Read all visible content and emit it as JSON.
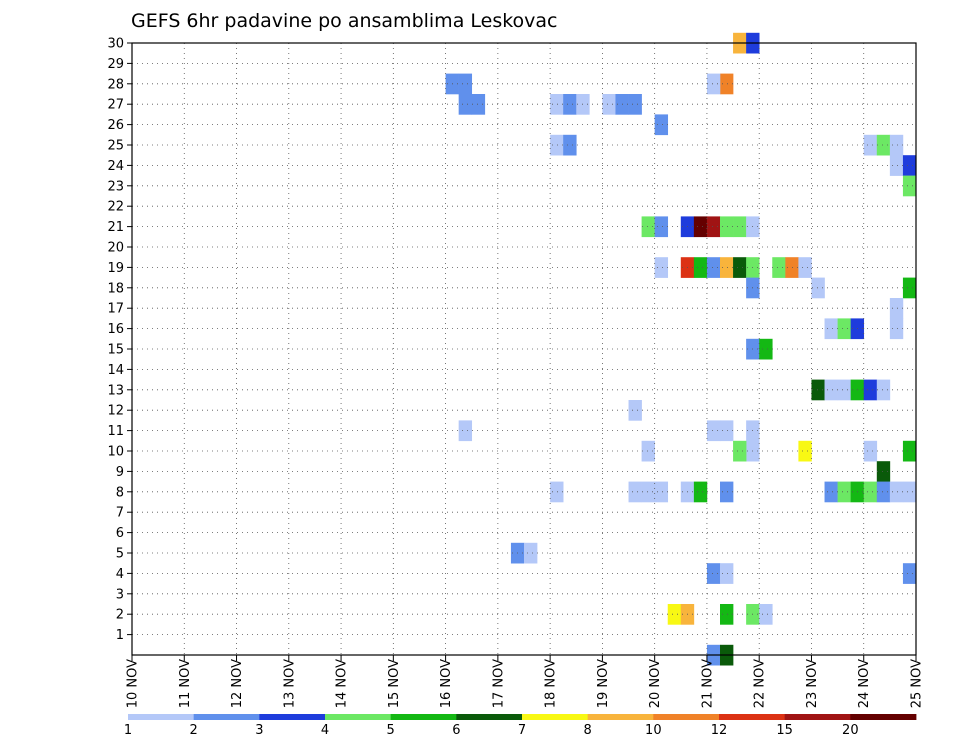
{
  "chart_data": {
    "type": "heatmap",
    "title": "GEFS 6hr padavine po ansamblima Leskovac",
    "xlabel": "",
    "ylabel": "",
    "x_ticks": [
      "10 NOV",
      "11 NOV",
      "12 NOV",
      "13 NOV",
      "14 NOV",
      "15 NOV",
      "16 NOV",
      "17 NOV",
      "18 NOV",
      "19 NOV",
      "20 NOV",
      "21 NOV",
      "22 NOV",
      "23 NOV",
      "24 NOV",
      "25 NOV"
    ],
    "y_ticks": [
      "1",
      "2",
      "3",
      "4",
      "5",
      "6",
      "7",
      "8",
      "9",
      "10",
      "11",
      "12",
      "13",
      "14",
      "15",
      "16",
      "17",
      "18",
      "19",
      "20",
      "21",
      "22",
      "23",
      "24",
      "25",
      "26",
      "27",
      "28",
      "29",
      "30"
    ],
    "xlim": [
      0,
      60
    ],
    "ylim": [
      0,
      30
    ],
    "x_unit": "6-hour steps from 10 NOV 00Z",
    "grid": true,
    "colorbar": {
      "colors": [
        "#b4c8f8",
        "#6090ec",
        "#1e3cdc",
        "#6ce864",
        "#14b814",
        "#0a5a0a",
        "#f8f814",
        "#f8b43c",
        "#f08228",
        "#dc3214",
        "#a01414",
        "#640000"
      ],
      "labels": [
        "1",
        "2",
        "3",
        "4",
        "5",
        "6",
        "7",
        "8",
        "10",
        "12",
        "15",
        "20"
      ]
    },
    "cells": [
      {
        "member": 0,
        "x": 44,
        "level": 1
      },
      {
        "member": 0,
        "x": 45,
        "level": 5
      },
      {
        "member": 30,
        "x": 46,
        "level": 7
      },
      {
        "member": 30,
        "x": 47,
        "level": 2
      },
      {
        "member": 28,
        "x": 25,
        "level": 1
      },
      {
        "member": 28,
        "x": 24,
        "level": 1
      },
      {
        "member": 28,
        "x": 45,
        "level": 8
      },
      {
        "member": 28,
        "x": 44,
        "level": 0
      },
      {
        "member": 27,
        "x": 25,
        "level": 1
      },
      {
        "member": 27,
        "x": 26,
        "level": 1
      },
      {
        "member": 27,
        "x": 32,
        "level": 0
      },
      {
        "member": 27,
        "x": 33,
        "level": 1
      },
      {
        "member": 27,
        "x": 34,
        "level": 0
      },
      {
        "member": 27,
        "x": 36,
        "level": 0
      },
      {
        "member": 27,
        "x": 37,
        "level": 1
      },
      {
        "member": 27,
        "x": 38,
        "level": 1
      },
      {
        "member": 26,
        "x": 40,
        "level": 1
      },
      {
        "member": 25,
        "x": 32,
        "level": 0
      },
      {
        "member": 25,
        "x": 33,
        "level": 1
      },
      {
        "member": 25,
        "x": 56,
        "level": 0
      },
      {
        "member": 25,
        "x": 57,
        "level": 3
      },
      {
        "member": 25,
        "x": 58,
        "level": 0
      },
      {
        "member": 24,
        "x": 58,
        "level": 0
      },
      {
        "member": 24,
        "x": 59,
        "level": 2
      },
      {
        "member": 23,
        "x": 59,
        "level": 3
      },
      {
        "member": 21,
        "x": 39,
        "level": 3
      },
      {
        "member": 21,
        "x": 40,
        "level": 1
      },
      {
        "member": 21,
        "x": 42,
        "level": 2
      },
      {
        "member": 21,
        "x": 43,
        "level": 11
      },
      {
        "member": 21,
        "x": 44,
        "level": 10
      },
      {
        "member": 21,
        "x": 45,
        "level": 3
      },
      {
        "member": 21,
        "x": 46,
        "level": 3
      },
      {
        "member": 21,
        "x": 47,
        "level": 0
      },
      {
        "member": 19,
        "x": 40,
        "level": 0
      },
      {
        "member": 19,
        "x": 42,
        "level": 9
      },
      {
        "member": 19,
        "x": 43,
        "level": 4
      },
      {
        "member": 19,
        "x": 44,
        "level": 1
      },
      {
        "member": 19,
        "x": 45,
        "level": 7
      },
      {
        "member": 19,
        "x": 46,
        "level": 5
      },
      {
        "member": 19,
        "x": 47,
        "level": 3
      },
      {
        "member": 19,
        "x": 49,
        "level": 3
      },
      {
        "member": 19,
        "x": 50,
        "level": 8
      },
      {
        "member": 19,
        "x": 51,
        "level": 0
      },
      {
        "member": 18,
        "x": 47,
        "level": 1
      },
      {
        "member": 18,
        "x": 52,
        "level": 0
      },
      {
        "member": 18,
        "x": 59,
        "level": 4
      },
      {
        "member": 17,
        "x": 58,
        "level": 0
      },
      {
        "member": 16,
        "x": 53,
        "level": 0
      },
      {
        "member": 16,
        "x": 54,
        "level": 3
      },
      {
        "member": 16,
        "x": 55,
        "level": 2
      },
      {
        "member": 16,
        "x": 58,
        "level": 0
      },
      {
        "member": 15,
        "x": 47,
        "level": 1
      },
      {
        "member": 15,
        "x": 48,
        "level": 4
      },
      {
        "member": 13,
        "x": 52,
        "level": 5
      },
      {
        "member": 13,
        "x": 53,
        "level": 0
      },
      {
        "member": 13,
        "x": 54,
        "level": 0
      },
      {
        "member": 13,
        "x": 55,
        "level": 4
      },
      {
        "member": 13,
        "x": 56,
        "level": 2
      },
      {
        "member": 13,
        "x": 57,
        "level": 0
      },
      {
        "member": 12,
        "x": 38,
        "level": 0
      },
      {
        "member": 11,
        "x": 25,
        "level": 0
      },
      {
        "member": 11,
        "x": 44,
        "level": 0
      },
      {
        "member": 11,
        "x": 45,
        "level": 0
      },
      {
        "member": 11,
        "x": 47,
        "level": 0
      },
      {
        "member": 10,
        "x": 39,
        "level": 0
      },
      {
        "member": 10,
        "x": 47,
        "level": 0
      },
      {
        "member": 10,
        "x": 46,
        "level": 3
      },
      {
        "member": 10,
        "x": 51,
        "level": 6
      },
      {
        "member": 10,
        "x": 56,
        "level": 0
      },
      {
        "member": 10,
        "x": 59,
        "level": 4
      },
      {
        "member": 9,
        "x": 57,
        "level": 5
      },
      {
        "member": 8,
        "x": 32,
        "level": 0
      },
      {
        "member": 8,
        "x": 38,
        "level": 0
      },
      {
        "member": 8,
        "x": 39,
        "level": 0
      },
      {
        "member": 8,
        "x": 40,
        "level": 0
      },
      {
        "member": 8,
        "x": 42,
        "level": 0
      },
      {
        "member": 8,
        "x": 43,
        "level": 4
      },
      {
        "member": 8,
        "x": 45,
        "level": 1
      },
      {
        "member": 8,
        "x": 53,
        "level": 1
      },
      {
        "member": 8,
        "x": 54,
        "level": 3
      },
      {
        "member": 8,
        "x": 55,
        "level": 4
      },
      {
        "member": 8,
        "x": 56,
        "level": 3
      },
      {
        "member": 8,
        "x": 57,
        "level": 1
      },
      {
        "member": 8,
        "x": 58,
        "level": 0
      },
      {
        "member": 8,
        "x": 59,
        "level": 0
      },
      {
        "member": 5,
        "x": 29,
        "level": 1
      },
      {
        "member": 5,
        "x": 30,
        "level": 0
      },
      {
        "member": 4,
        "x": 44,
        "level": 1
      },
      {
        "member": 4,
        "x": 45,
        "level": 0
      },
      {
        "member": 4,
        "x": 59,
        "level": 1
      },
      {
        "member": 2,
        "x": 41,
        "level": 6
      },
      {
        "member": 2,
        "x": 42,
        "level": 7
      },
      {
        "member": 2,
        "x": 45,
        "level": 4
      },
      {
        "member": 2,
        "x": 47,
        "level": 3
      },
      {
        "member": 2,
        "x": 48,
        "level": 0
      }
    ]
  }
}
